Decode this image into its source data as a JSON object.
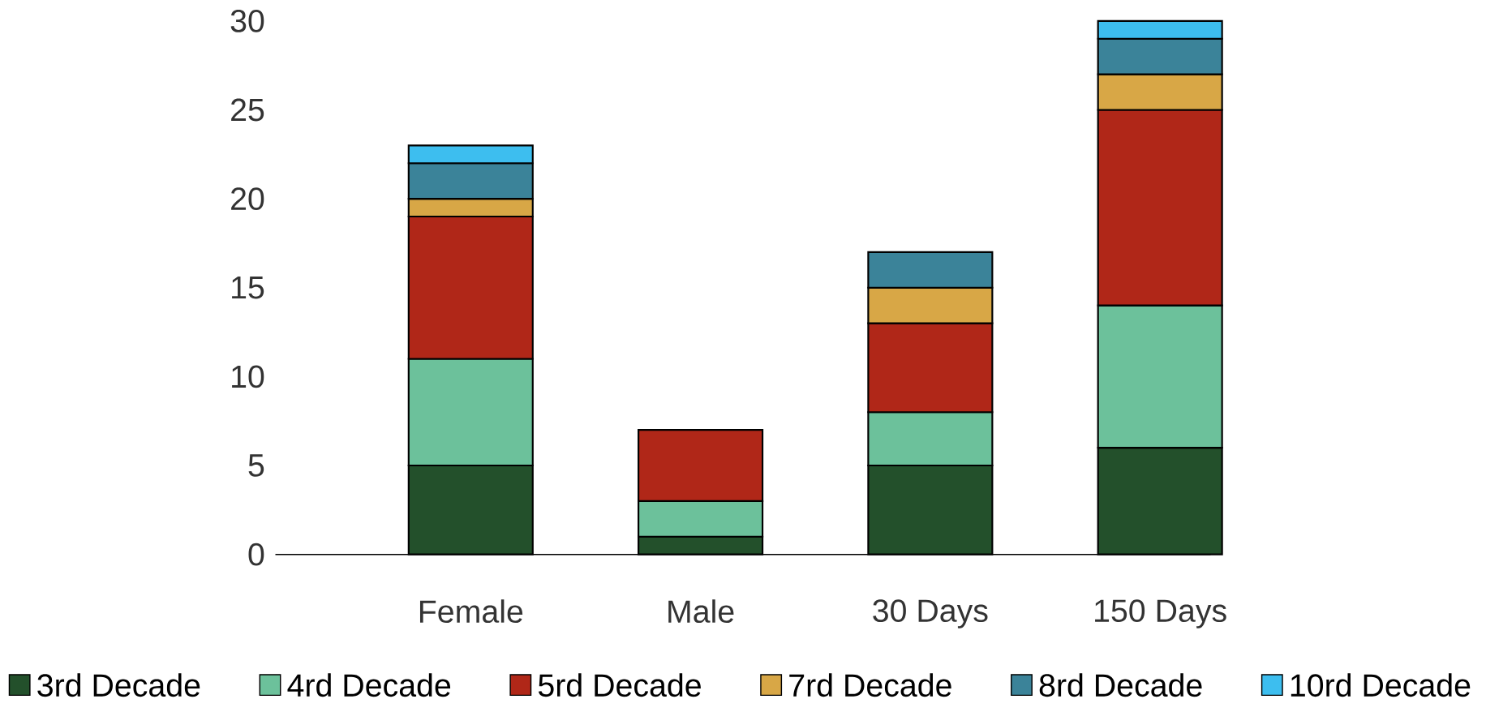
{
  "chart_data": {
    "type": "bar",
    "stacked": true,
    "categories": [
      "Female",
      "Male",
      "30 Days",
      "150 Days"
    ],
    "ylim": [
      0,
      30
    ],
    "yticks": [
      0,
      5,
      10,
      15,
      20,
      25,
      30
    ],
    "grid": false,
    "legend": "bottom",
    "series": [
      {
        "name": "3rd Decade",
        "color": "#23502b",
        "values": [
          5,
          1,
          5,
          6
        ]
      },
      {
        "name": "4rd Decade",
        "color": "#6cc19b",
        "values": [
          6,
          2,
          3,
          8
        ]
      },
      {
        "name": "5rd Decade",
        "color": "#b02718",
        "values": [
          8,
          4,
          5,
          11
        ]
      },
      {
        "name": "7rd Decade",
        "color": "#d8a746",
        "values": [
          1,
          null,
          2,
          2
        ]
      },
      {
        "name": "8rd Decade",
        "color": "#3b8399",
        "values": [
          2,
          null,
          2,
          2
        ]
      },
      {
        "name": "10rd Decade",
        "color": "#3dbeef",
        "values": [
          1,
          null,
          null,
          1
        ]
      }
    ]
  }
}
